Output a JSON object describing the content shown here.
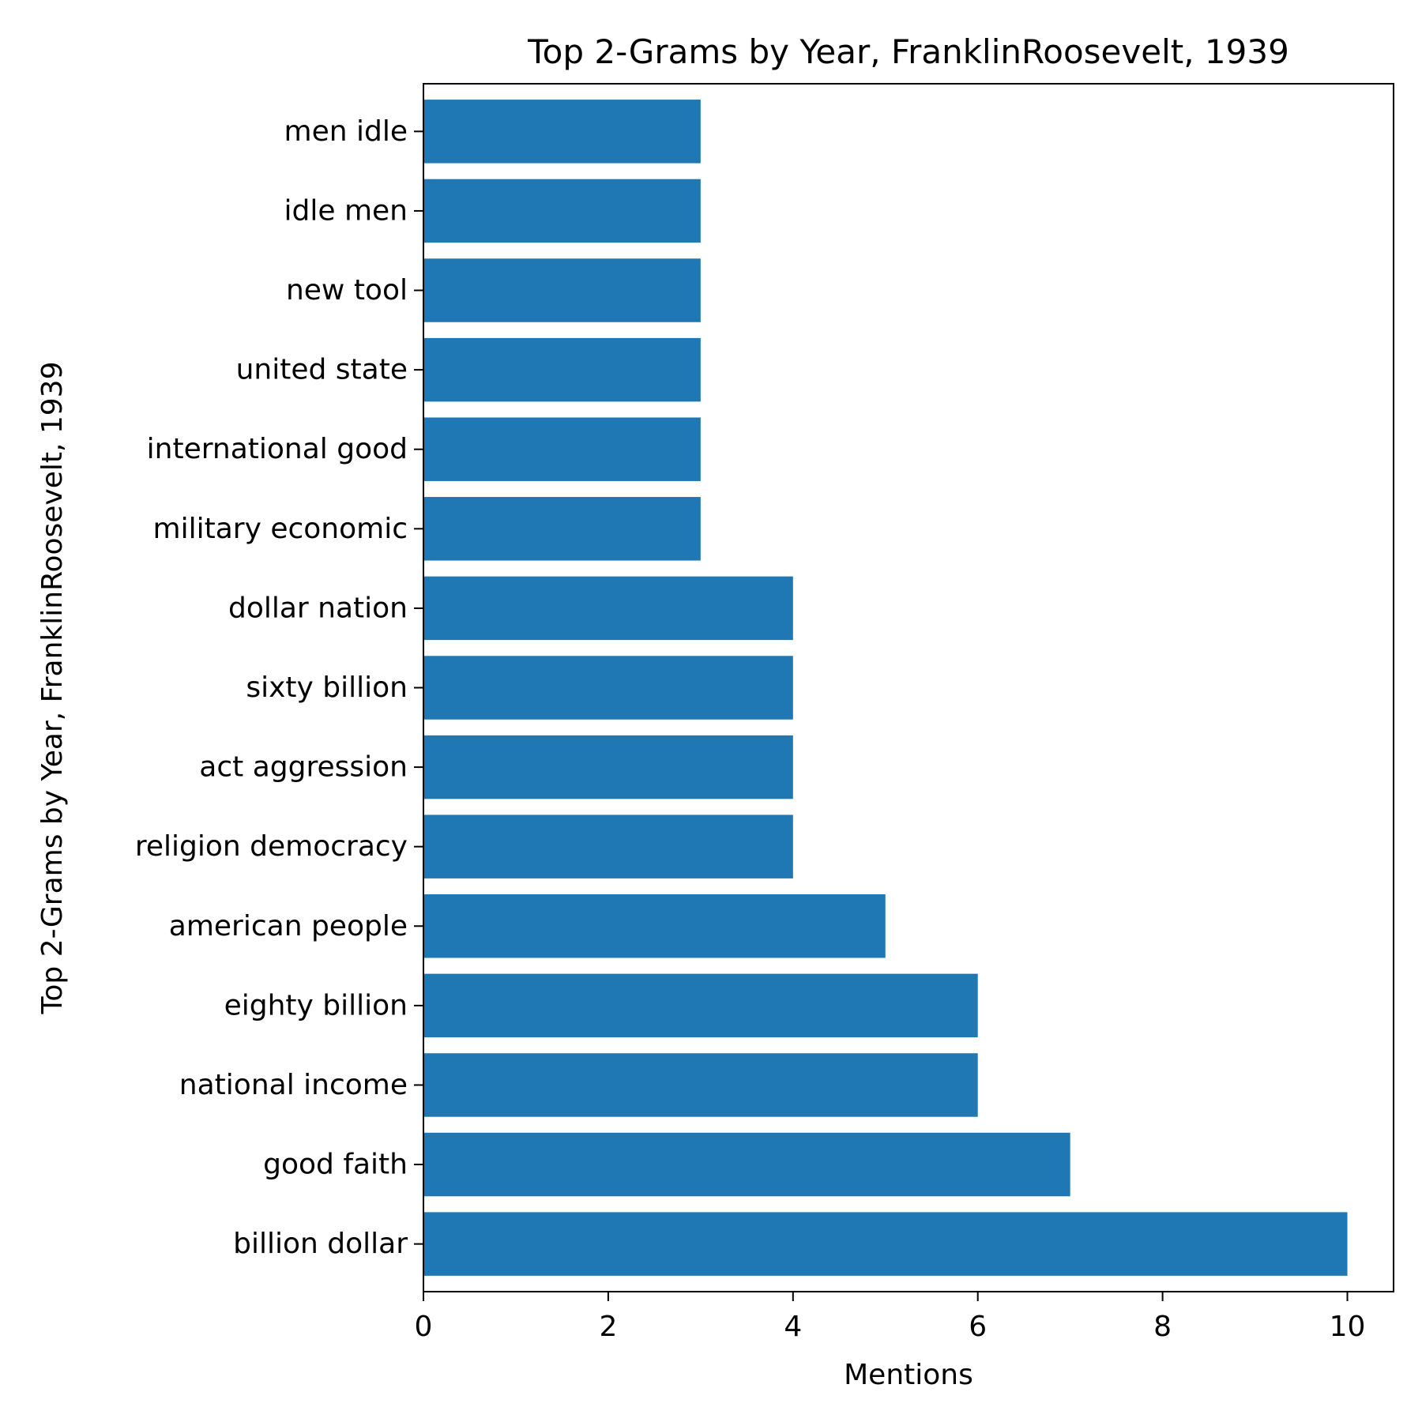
{
  "chart_data": {
    "type": "bar",
    "orientation": "horizontal",
    "title": "Top 2-Grams by Year, FranklinRoosevelt, 1939",
    "xlabel": "Mentions",
    "ylabel": "Top 2-Grams by Year, FranklinRoosevelt, 1939",
    "categories": [
      "billion dollar",
      "good faith",
      "national income",
      "eighty billion",
      "american people",
      "religion democracy",
      "act aggression",
      "sixty billion",
      "dollar nation",
      "military economic",
      "international good",
      "united state",
      "new tool",
      "idle men",
      "men idle"
    ],
    "values": [
      10,
      7,
      6,
      6,
      5,
      4,
      4,
      4,
      4,
      3,
      3,
      3,
      3,
      3,
      3
    ],
    "xlim": [
      0,
      10.5
    ],
    "xticks": [
      0,
      2,
      4,
      6,
      8,
      10
    ],
    "grid": false,
    "bar_color": "#1f77b4"
  }
}
